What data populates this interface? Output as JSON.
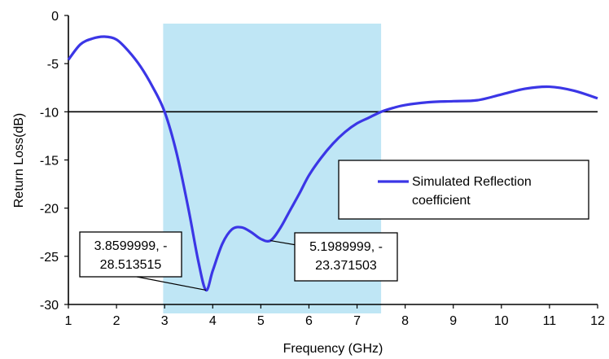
{
  "chart_data": {
    "type": "line",
    "xlabel": "Frequency (GHz)",
    "ylabel": "Return Loss(dB)",
    "xlim": [
      1,
      12
    ],
    "ylim": [
      -30,
      0
    ],
    "xticks": [
      "1",
      "2",
      "3",
      "4",
      "5",
      "6",
      "7",
      "8",
      "9",
      "10",
      "11",
      "12"
    ],
    "yticks": [
      "0",
      "-5",
      "-10",
      "-15",
      "-20",
      "-25",
      "-30"
    ],
    "reference_line": {
      "y": -10
    },
    "shaded_band": {
      "x_from": 2.97,
      "x_to": 7.5,
      "color": "#bfe6f5"
    },
    "series": [
      {
        "name": "Simulated Reflection coefficient",
        "color": "#3b36e6",
        "x": [
          1.0,
          1.25,
          1.5,
          1.75,
          2.0,
          2.25,
          2.5,
          2.75,
          3.0,
          3.25,
          3.5,
          3.7,
          3.86,
          4.0,
          4.2,
          4.4,
          4.6,
          4.8,
          5.0,
          5.199,
          5.4,
          5.6,
          5.8,
          6.0,
          6.25,
          6.5,
          6.75,
          7.0,
          7.25,
          7.5,
          7.75,
          8.0,
          8.5,
          9.0,
          9.5,
          10.0,
          10.5,
          11.0,
          11.5,
          12.0
        ],
        "y": [
          -4.6,
          -3.0,
          -2.4,
          -2.2,
          -2.5,
          -3.7,
          -5.3,
          -7.4,
          -10.0,
          -14.3,
          -20.2,
          -25.5,
          -28.513515,
          -26.5,
          -23.7,
          -22.2,
          -22.0,
          -22.5,
          -23.2,
          -23.371503,
          -22.1,
          -20.3,
          -18.5,
          -16.6,
          -14.8,
          -13.3,
          -12.1,
          -11.2,
          -10.6,
          -10.0,
          -9.6,
          -9.3,
          -9.0,
          -8.9,
          -8.8,
          -8.2,
          -7.6,
          -7.4,
          -7.8,
          -8.6
        ]
      }
    ],
    "legend": {
      "placement": "right",
      "entries": [
        "Simulated Reflection",
        "coefficient"
      ]
    },
    "annotations": [
      {
        "x": 3.8599999,
        "y": -28.513515,
        "lines": [
          "3.8599999, -",
          "28.513515"
        ]
      },
      {
        "x": 5.1989999,
        "y": -23.371503,
        "lines": [
          "5.1989999, -",
          "23.371503"
        ]
      }
    ]
  }
}
